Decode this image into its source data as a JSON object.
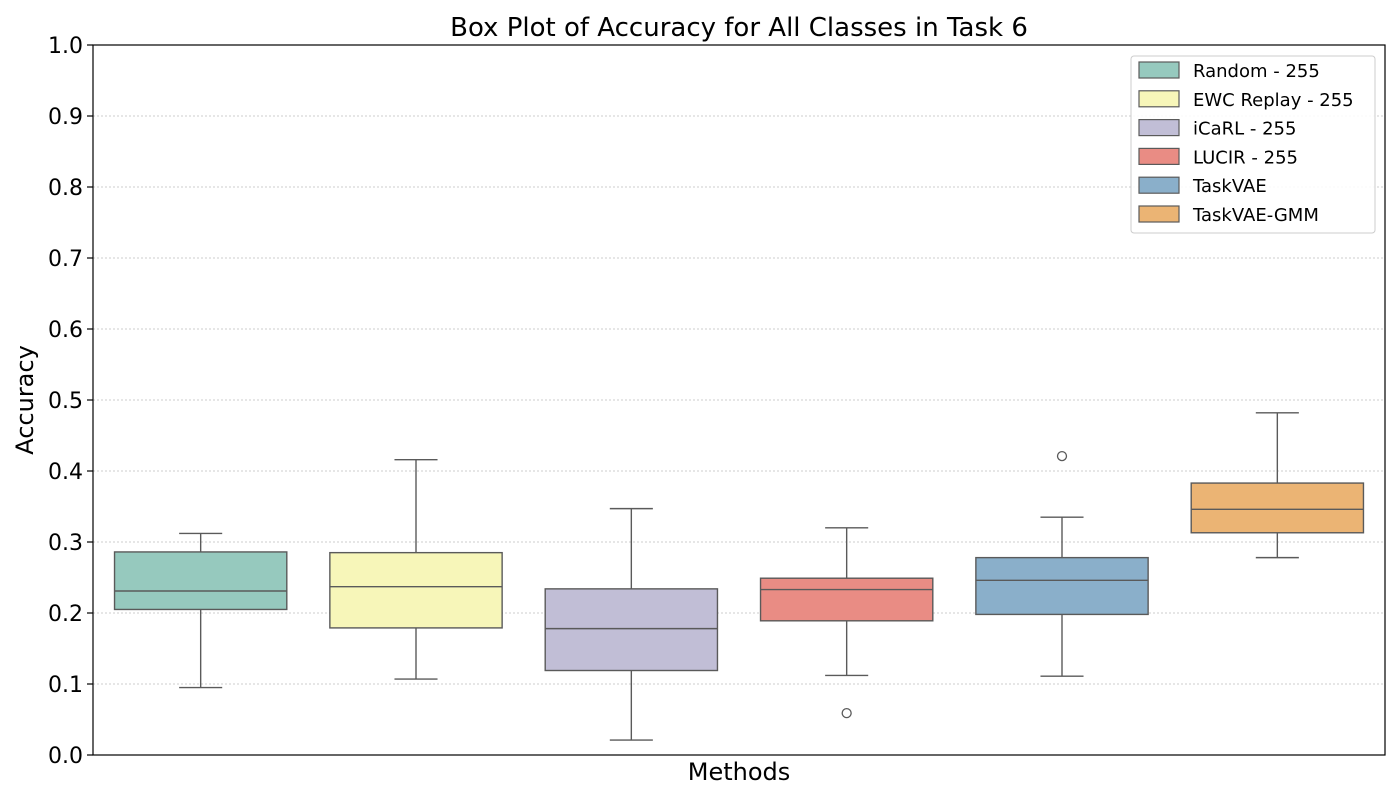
{
  "chart_data": {
    "type": "box",
    "title": "Box Plot of Accuracy for All Classes in Task 6",
    "xlabel": "Methods",
    "ylabel": "Accuracy",
    "ylim": [
      0.0,
      1.0
    ],
    "yticks": [
      "0.0",
      "0.1",
      "0.2",
      "0.3",
      "0.4",
      "0.5",
      "0.6",
      "0.7",
      "0.8",
      "0.9",
      "1.0"
    ],
    "grid": true,
    "legend_position": "top-right",
    "series": [
      {
        "name": "Random - 255",
        "color": "#96c9be",
        "whisker_low": 0.095,
        "q1": 0.205,
        "median": 0.231,
        "q3": 0.286,
        "whisker_high": 0.312,
        "outliers": []
      },
      {
        "name": "EWC Replay - 255",
        "color": "#f7f6b9",
        "whisker_low": 0.107,
        "q1": 0.179,
        "median": 0.237,
        "q3": 0.285,
        "whisker_high": 0.416,
        "outliers": []
      },
      {
        "name": "iCaRL - 255",
        "color": "#c1bed6",
        "whisker_low": 0.021,
        "q1": 0.119,
        "median": 0.178,
        "q3": 0.234,
        "whisker_high": 0.347,
        "outliers": []
      },
      {
        "name": "LUCIR - 255",
        "color": "#e98c84",
        "whisker_low": 0.112,
        "q1": 0.189,
        "median": 0.233,
        "q3": 0.249,
        "whisker_high": 0.32,
        "outliers": [
          0.059
        ]
      },
      {
        "name": "TaskVAE",
        "color": "#8aafca",
        "whisker_low": 0.111,
        "q1": 0.198,
        "median": 0.246,
        "q3": 0.278,
        "whisker_high": 0.335,
        "outliers": [
          0.421
        ]
      },
      {
        "name": "TaskVAE-GMM",
        "color": "#ebb474",
        "whisker_low": 0.278,
        "q1": 0.313,
        "median": 0.346,
        "q3": 0.383,
        "whisker_high": 0.482,
        "outliers": []
      }
    ]
  }
}
